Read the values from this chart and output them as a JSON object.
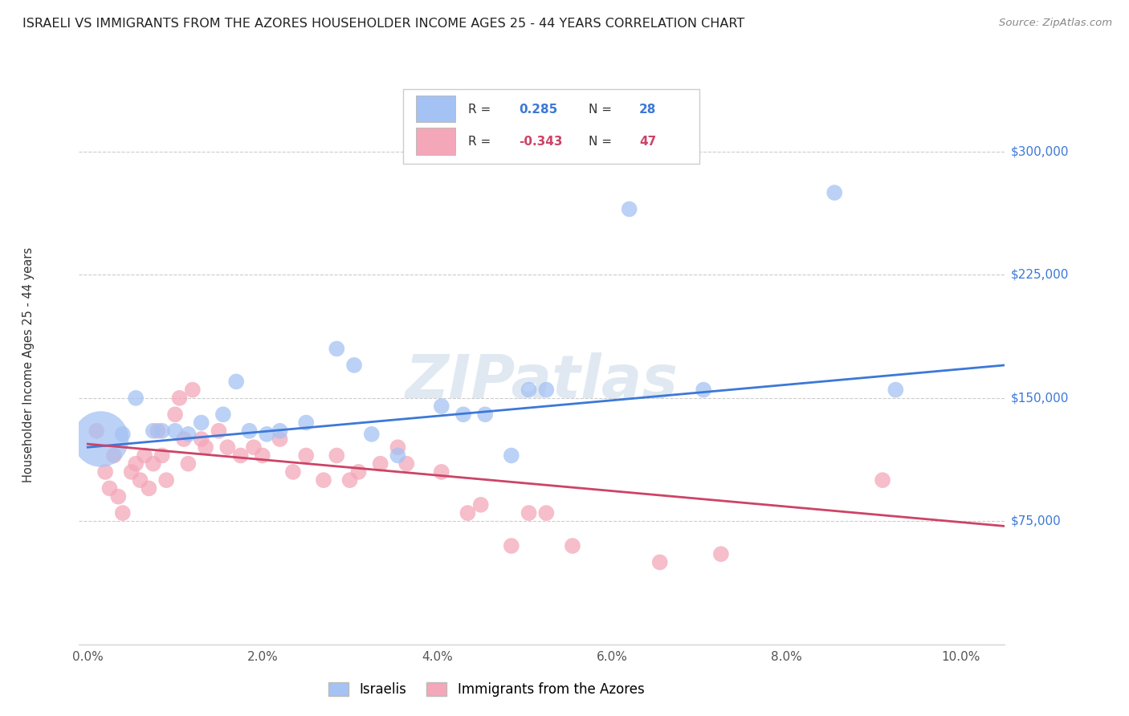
{
  "title": "ISRAELI VS IMMIGRANTS FROM THE AZORES HOUSEHOLDER INCOME AGES 25 - 44 YEARS CORRELATION CHART",
  "source": "Source: ZipAtlas.com",
  "ylabel": "Householder Income Ages 25 - 44 years",
  "xlabel_ticks": [
    "0.0%",
    "2.0%",
    "4.0%",
    "6.0%",
    "8.0%",
    "10.0%"
  ],
  "xlabel_vals": [
    0.0,
    2.0,
    4.0,
    6.0,
    8.0,
    10.0
  ],
  "ylim": [
    0,
    340000
  ],
  "xlim": [
    -0.1,
    10.5
  ],
  "ytick_labels": [
    "$75,000",
    "$150,000",
    "$225,000",
    "$300,000"
  ],
  "ytick_vals": [
    75000,
    150000,
    225000,
    300000
  ],
  "watermark": "ZIPatlas",
  "legend_label1": "Israelis",
  "legend_label2": "Immigrants from the Azores",
  "r1": "0.285",
  "n1": "28",
  "r2": "-0.343",
  "n2": "47",
  "color_blue": "#a4c2f4",
  "color_pink": "#f4a7b9",
  "line_blue": "#3c78d8",
  "line_pink": "#cc4466",
  "blue_line_x0": 0.0,
  "blue_line_y0": 120000,
  "blue_line_x1": 10.5,
  "blue_line_y1": 170000,
  "pink_line_x0": 0.0,
  "pink_line_y0": 122000,
  "pink_line_x1": 10.5,
  "pink_line_y1": 72000,
  "israelis_x": [
    0.15,
    0.4,
    0.55,
    0.75,
    0.85,
    1.0,
    1.15,
    1.3,
    1.55,
    1.7,
    1.85,
    2.05,
    2.2,
    2.5,
    2.85,
    3.05,
    3.25,
    3.55,
    4.05,
    4.3,
    4.55,
    4.85,
    5.05,
    5.25,
    6.2,
    7.05,
    8.55,
    9.25
  ],
  "israelis_y": [
    125000,
    128000,
    150000,
    130000,
    130000,
    130000,
    128000,
    135000,
    140000,
    160000,
    130000,
    128000,
    130000,
    135000,
    180000,
    170000,
    128000,
    115000,
    145000,
    140000,
    140000,
    115000,
    155000,
    155000,
    265000,
    155000,
    275000,
    155000
  ],
  "israelis_size": [
    2500,
    200,
    200,
    200,
    200,
    200,
    200,
    200,
    200,
    200,
    200,
    200,
    200,
    200,
    200,
    200,
    200,
    200,
    200,
    200,
    200,
    200,
    200,
    200,
    200,
    200,
    200,
    200
  ],
  "azores_x": [
    0.1,
    0.2,
    0.25,
    0.3,
    0.35,
    0.4,
    0.5,
    0.55,
    0.6,
    0.65,
    0.7,
    0.75,
    0.8,
    0.85,
    0.9,
    1.0,
    1.05,
    1.1,
    1.15,
    1.2,
    1.3,
    1.35,
    1.5,
    1.6,
    1.75,
    1.9,
    2.0,
    2.2,
    2.35,
    2.5,
    2.7,
    2.85,
    3.0,
    3.1,
    3.35,
    3.55,
    3.65,
    4.05,
    4.35,
    4.5,
    4.85,
    5.05,
    5.25,
    5.55,
    6.55,
    7.25,
    9.1
  ],
  "azores_y": [
    130000,
    105000,
    95000,
    115000,
    90000,
    80000,
    105000,
    110000,
    100000,
    115000,
    95000,
    110000,
    130000,
    115000,
    100000,
    140000,
    150000,
    125000,
    110000,
    155000,
    125000,
    120000,
    130000,
    120000,
    115000,
    120000,
    115000,
    125000,
    105000,
    115000,
    100000,
    115000,
    100000,
    105000,
    110000,
    120000,
    110000,
    105000,
    80000,
    85000,
    60000,
    80000,
    80000,
    60000,
    50000,
    55000,
    100000
  ]
}
